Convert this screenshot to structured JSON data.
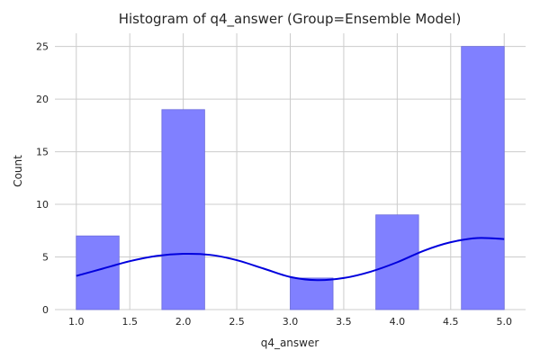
{
  "chart_data": {
    "type": "bar",
    "title": "Histogram of q4_answer (Group=Ensemble Model)",
    "xlabel": "q4_answer",
    "ylabel": "Count",
    "xlim": [
      0.8,
      5.2
    ],
    "ylim": [
      0,
      26.25
    ],
    "xticks": [
      "1.0",
      "1.5",
      "2.0",
      "2.5",
      "3.0",
      "3.5",
      "4.0",
      "4.5",
      "5.0"
    ],
    "yticks": [
      "0",
      "5",
      "10",
      "15",
      "20",
      "25"
    ],
    "grid": true,
    "bars": [
      {
        "x0": 1.0,
        "x1": 1.4,
        "value": 7
      },
      {
        "x0": 1.8,
        "x1": 2.2,
        "value": 19
      },
      {
        "x0": 3.0,
        "x1": 3.4,
        "value": 3
      },
      {
        "x0": 3.8,
        "x1": 4.2,
        "value": 9
      },
      {
        "x0": 4.6,
        "x1": 5.0,
        "value": 25
      }
    ],
    "kde": {
      "x": [
        1.0,
        1.25,
        1.5,
        1.75,
        2.0,
        2.25,
        2.5,
        2.75,
        3.0,
        3.25,
        3.5,
        3.75,
        4.0,
        4.25,
        4.5,
        4.75,
        5.0
      ],
      "y": [
        3.2,
        3.9,
        4.6,
        5.1,
        5.3,
        5.2,
        4.7,
        3.9,
        3.1,
        2.8,
        3.0,
        3.6,
        4.5,
        5.6,
        6.4,
        6.8,
        6.7
      ]
    },
    "colors": {
      "bar_fill": "#8080ff",
      "bar_stroke": "#6c6cdc",
      "kde_line": "#0000dd",
      "grid": "#cccccc"
    }
  }
}
